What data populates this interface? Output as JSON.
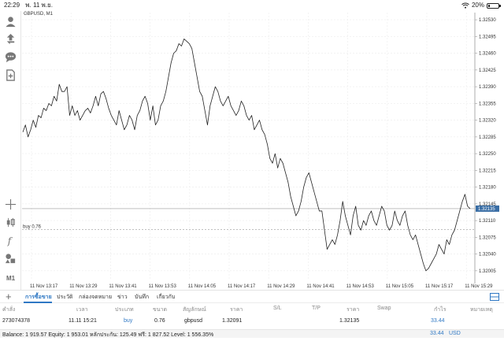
{
  "status_bar": {
    "time": "22:29",
    "date": "พ. 11 พ.ย.",
    "battery_text": "20%",
    "battery_level": 0.2
  },
  "toolbar": {
    "items": [
      {
        "name": "account-icon"
      },
      {
        "name": "trade-icon"
      },
      {
        "name": "chat-icon"
      },
      {
        "name": "new-document-icon"
      },
      {
        "name": "crosshair-icon"
      },
      {
        "name": "candlestick-icon"
      },
      {
        "name": "indicator-f-icon"
      },
      {
        "name": "objects-icon"
      }
    ],
    "timeframe": "M1"
  },
  "chart": {
    "symbol_label": "GBPUSD, M1",
    "buy_label": "buy 0.76",
    "current_price_label": "1.32135",
    "colors": {
      "line": "#222222",
      "grid": "#ececec",
      "price_tag": "#3a6ea5",
      "buy_line": "#aaaaaa"
    }
  },
  "chart_data": {
    "type": "line",
    "x_ticks": [
      "11 Nov 13:17",
      "11 Nov 13:29",
      "11 Nov 13:41",
      "11 Nov 13:53",
      "11 Nov 14:05",
      "11 Nov 14:17",
      "11 Nov 14:29",
      "11 Nov 14:41",
      "11 Nov 14:53",
      "11 Nov 15:05",
      "11 Nov 15:17",
      "11 Nov 15:29"
    ],
    "y_ticks": [
      "1.32530",
      "1.32495",
      "1.32460",
      "1.32425",
      "1.32390",
      "1.32355",
      "1.32320",
      "1.32285",
      "1.32250",
      "1.32215",
      "1.32180",
      "1.32145",
      "1.32110",
      "1.32075",
      "1.32040",
      "1.32005"
    ],
    "ylim": [
      1.31985,
      1.32545
    ],
    "grid": true,
    "current_price": 1.32135,
    "buy_price": 1.32091,
    "series": [
      {
        "values": [
          1.32295,
          1.3231,
          1.32285,
          1.323,
          1.3232,
          1.32305,
          1.3233,
          1.32325,
          1.32345,
          1.3234,
          1.32355,
          1.3235,
          1.3237,
          1.3236,
          1.32395,
          1.3238,
          1.3238,
          1.3239,
          1.3233,
          1.3235,
          1.3233,
          1.3234,
          1.3232,
          1.3233,
          1.3234,
          1.32345,
          1.32335,
          1.3235,
          1.3237,
          1.3235,
          1.32375,
          1.3238,
          1.32365,
          1.32345,
          1.3233,
          1.3232,
          1.3231,
          1.3234,
          1.3232,
          1.323,
          1.3231,
          1.3233,
          1.3232,
          1.323,
          1.3233,
          1.3234,
          1.3236,
          1.3237,
          1.32355,
          1.3232,
          1.3235,
          1.3231,
          1.3232,
          1.3235,
          1.3236,
          1.3238,
          1.3241,
          1.3244,
          1.3246,
          1.32465,
          1.3248,
          1.32475,
          1.3249,
          1.32485,
          1.3248,
          1.3247,
          1.3244,
          1.3241,
          1.3238,
          1.3237,
          1.3234,
          1.3231,
          1.3235,
          1.3237,
          1.3239,
          1.3238,
          1.3236,
          1.3235,
          1.3236,
          1.3237,
          1.3235,
          1.3234,
          1.3233,
          1.3234,
          1.3236,
          1.3235,
          1.3233,
          1.3232,
          1.3233,
          1.323,
          1.3231,
          1.3232,
          1.323,
          1.3229,
          1.3227,
          1.3224,
          1.3223,
          1.3225,
          1.3222,
          1.3224,
          1.3223,
          1.3221,
          1.3219,
          1.3216,
          1.3214,
          1.3212,
          1.3213,
          1.3215,
          1.3218,
          1.322,
          1.3221,
          1.3219,
          1.3217,
          1.3215,
          1.3213,
          1.3213,
          1.3209,
          1.3205,
          1.3206,
          1.3207,
          1.3206,
          1.3208,
          1.3211,
          1.3215,
          1.3212,
          1.321,
          1.3208,
          1.3212,
          1.3214,
          1.321,
          1.3209,
          1.3211,
          1.321,
          1.3212,
          1.3213,
          1.3211,
          1.321,
          1.3212,
          1.3214,
          1.3213,
          1.321,
          1.3209,
          1.321,
          1.3213,
          1.3211,
          1.321,
          1.3212,
          1.3213,
          1.321,
          1.3208,
          1.3207,
          1.3208,
          1.3206,
          1.3204,
          1.3202,
          1.32005,
          1.3201,
          1.3202,
          1.3203,
          1.3204,
          1.3206,
          1.3205,
          1.3204,
          1.3207,
          1.3206,
          1.3208,
          1.3209,
          1.3211,
          1.3213,
          1.3215,
          1.32165,
          1.3214,
          1.32135
        ]
      }
    ]
  },
  "tabs": [
    {
      "label": "การซื้อขาย",
      "active": true
    },
    {
      "label": "ประวัติ",
      "active": false
    },
    {
      "label": "กล่องจดหมาย",
      "active": false
    },
    {
      "label": "ข่าว",
      "active": false
    },
    {
      "label": "บันทึก",
      "active": false
    },
    {
      "label": "เกี่ยวกับ",
      "active": false
    }
  ],
  "table": {
    "headers": {
      "order": "คำสั่ง",
      "time": "เวลา",
      "type": "ประเภท",
      "size": "ขนาด",
      "symbol": "สัญลักษณ์",
      "price": "ราคา",
      "sl": "S/L",
      "tp": "T/P",
      "cur_price": "ราคา",
      "swap": "Swap",
      "profit": "กำไร",
      "note": "หมายเหตุ"
    },
    "rows": [
      {
        "order": "273074378",
        "time": "11.11 15:21",
        "type": "buy",
        "size": "0.76",
        "symbol": "gbpusd",
        "price": "1.32091",
        "cur_price": "1.32135",
        "profit": "33.44"
      }
    ]
  },
  "balance": {
    "text": "Balance: 1 919.57 Equity: 1 953.01 หลักประกัน: 125.49 ฟรี: 1 827.52 Level: 1 556.35%",
    "profit": "33.44",
    "currency": "USD"
  }
}
